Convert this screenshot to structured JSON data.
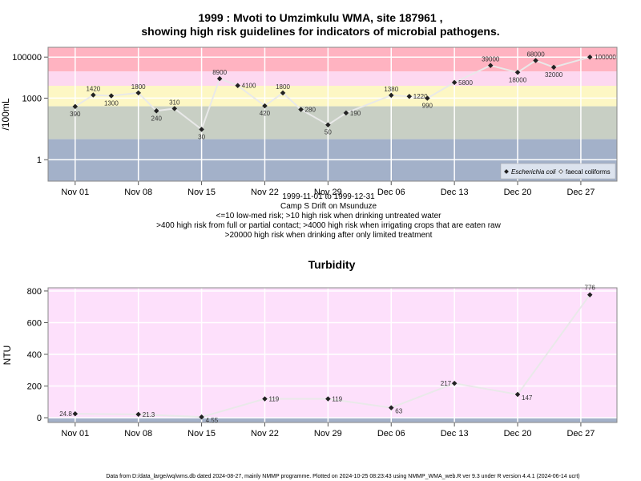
{
  "chart_data": [
    {
      "type": "line",
      "title": "1999 : Mvoti to Umzimkulu WMA, site 187961 ,",
      "title2": "showing high risk guidelines for indicators of microbial pathogens.",
      "ylabel": "/100mL",
      "y_scale": "log",
      "ylim": [
        0.09,
        300000
      ],
      "y_ticks": [
        1,
        1000,
        100000
      ],
      "y_tick_labels": [
        "1",
        "1000",
        "100000"
      ],
      "xlim": [
        "1999-10-29",
        "1999-12-31"
      ],
      "x_ticks": [
        "1999-11-01",
        "1999-11-08",
        "1999-11-15",
        "1999-11-22",
        "1999-11-29",
        "1999-12-06",
        "1999-12-13",
        "1999-12-20",
        "1999-12-27"
      ],
      "x_tick_labels": [
        "Nov 01",
        "Nov 08",
        "Nov 15",
        "Nov 22",
        "Nov 29",
        "Dec 06",
        "Dec 13",
        "Dec 20",
        "Dec 27"
      ],
      "bands": [
        {
          "from": 20000,
          "to": 300000,
          "color": "#ffb3c1"
        },
        {
          "from": 4000,
          "to": 20000,
          "color": "#fdd8f0"
        },
        {
          "from": 400,
          "to": 4000,
          "color": "#fdf7c4"
        },
        {
          "from": 10,
          "to": 400,
          "color": "#c8cfc4"
        },
        {
          "from": 0.09,
          "to": 10,
          "color": "#a3b1c9"
        }
      ],
      "series": [
        {
          "name": "Escherichia coli",
          "color": "#222222",
          "points": [
            {
              "x": "1999-11-01",
              "y": 390,
              "label": "390"
            },
            {
              "x": "1999-11-03",
              "y": 1420,
              "label": "1420"
            },
            {
              "x": "1999-11-05",
              "y": 1300,
              "label": "1300"
            },
            {
              "x": "1999-11-08",
              "y": 1800,
              "label": "1800"
            },
            {
              "x": "1999-11-10",
              "y": 240,
              "label": "240"
            },
            {
              "x": "1999-11-12",
              "y": 310,
              "label": "310"
            },
            {
              "x": "1999-11-15",
              "y": 30,
              "label": "30"
            },
            {
              "x": "1999-11-17",
              "y": 8900,
              "label": "8900"
            },
            {
              "x": "1999-11-19",
              "y": 4100,
              "label": "4100"
            },
            {
              "x": "1999-11-22",
              "y": 420,
              "label": "420"
            },
            {
              "x": "1999-11-24",
              "y": 1800,
              "label": "1800"
            },
            {
              "x": "1999-11-26",
              "y": 280,
              "label": "280"
            },
            {
              "x": "1999-11-29",
              "y": 50,
              "label": "50"
            },
            {
              "x": "1999-12-01",
              "y": 190,
              "label": "190"
            },
            {
              "x": "1999-12-06",
              "y": 1380,
              "label": "1380"
            },
            {
              "x": "1999-12-08",
              "y": 1220,
              "label": "1220"
            },
            {
              "x": "1999-12-10",
              "y": 990,
              "label": "990"
            },
            {
              "x": "1999-12-13",
              "y": 5800,
              "label": "5800"
            },
            {
              "x": "1999-12-17",
              "y": 39000,
              "label": "39000"
            },
            {
              "x": "1999-12-20",
              "y": 18000,
              "label": "18000"
            },
            {
              "x": "1999-12-22",
              "y": 68000,
              "label": "68000"
            },
            {
              "x": "1999-12-24",
              "y": 32000,
              "label": "32000"
            },
            {
              "x": "1999-12-28",
              "y": 100000,
              "label": "100000"
            }
          ]
        }
      ],
      "legend": {
        "position": "bottom-right",
        "entries": [
          {
            "label": "Escherichia coli",
            "marker": "filled-diamond",
            "italic": true
          },
          {
            "label": "faecal coliforms",
            "marker": "open-diamond",
            "italic": false
          }
        ]
      },
      "caption": [
        "1999-11-01 to 1999-12-31",
        "Camp S Drift on Msunduze",
        "<=10 low-med risk; >10 high risk when drinking untreated water",
        ">400 high risk from full or partial contact; >4000 high risk when irrigating crops that are eaten raw",
        ">20000 high risk when drinking after only limited treatment"
      ]
    },
    {
      "type": "line",
      "title": "Turbidity",
      "ylabel": "NTU",
      "y_scale": "linear",
      "ylim": [
        -30,
        820
      ],
      "y_ticks": [
        0,
        200,
        400,
        600,
        800
      ],
      "y_tick_labels": [
        "0",
        "200",
        "400",
        "600",
        "800"
      ],
      "xlim": [
        "1999-10-29",
        "1999-12-31"
      ],
      "x_ticks": [
        "1999-11-01",
        "1999-11-08",
        "1999-11-15",
        "1999-11-22",
        "1999-11-29",
        "1999-12-06",
        "1999-12-13",
        "1999-12-20",
        "1999-12-27"
      ],
      "x_tick_labels": [
        "Nov 01",
        "Nov 08",
        "Nov 15",
        "Nov 22",
        "Nov 29",
        "Dec 06",
        "Dec 13",
        "Dec 20",
        "Dec 27"
      ],
      "bands": [
        {
          "from": 0,
          "to": 820,
          "color": "#fde0fb"
        },
        {
          "from": -30,
          "to": 0,
          "color": "#a3b1c9"
        }
      ],
      "series": [
        {
          "color": "#222222",
          "points": [
            {
              "x": "1999-11-01",
              "y": 24.8,
              "label": "24.8"
            },
            {
              "x": "1999-11-08",
              "y": 21.3,
              "label": "21.3"
            },
            {
              "x": "1999-11-15",
              "y": 4.55,
              "label": "4.55"
            },
            {
              "x": "1999-11-22",
              "y": 119,
              "label": "119"
            },
            {
              "x": "1999-11-29",
              "y": 119,
              "label": "119"
            },
            {
              "x": "1999-12-06",
              "y": 63,
              "label": "63"
            },
            {
              "x": "1999-12-13",
              "y": 217,
              "label": "217"
            },
            {
              "x": "1999-12-20",
              "y": 147,
              "label": "147"
            },
            {
              "x": "1999-12-28",
              "y": 776,
              "label": "776"
            }
          ]
        }
      ]
    }
  ],
  "footer": "Data from D:/data_large/wq/wms.db dated 2024-08-27, mainly NMMP programme. Plotted on 2024-10-25 08:23:43 using NMMP_WMA_web.R ver 9.3 under R version 4.4.1 (2024-06-14 ucrt)"
}
